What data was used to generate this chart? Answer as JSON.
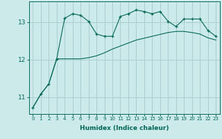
{
  "xlabel": "Humidex (Indice chaleur)",
  "bg_color": "#cceaea",
  "grid_color": "#aacfcf",
  "line_color": "#006655",
  "xlim": [
    -0.5,
    23.5
  ],
  "ylim": [
    10.55,
    13.55
  ],
  "yticks": [
    11,
    12,
    13
  ],
  "xticks": [
    0,
    1,
    2,
    3,
    4,
    5,
    6,
    7,
    8,
    9,
    10,
    11,
    12,
    13,
    14,
    15,
    16,
    17,
    18,
    19,
    20,
    21,
    22,
    23
  ],
  "line1_x": [
    0,
    1,
    2,
    3,
    4,
    5,
    6,
    7,
    8,
    9,
    10,
    11,
    12,
    13,
    14,
    15,
    16,
    17,
    18,
    19,
    20,
    21,
    22,
    23
  ],
  "line1_y": [
    10.72,
    11.08,
    11.35,
    12.02,
    13.1,
    13.22,
    13.18,
    13.02,
    12.68,
    12.62,
    12.62,
    13.15,
    13.22,
    13.32,
    13.28,
    13.22,
    13.28,
    13.02,
    12.88,
    13.08,
    13.08,
    13.08,
    12.78,
    12.62
  ],
  "line2_x": [
    0,
    1,
    2,
    3,
    4,
    5,
    6,
    7,
    8,
    9,
    10,
    11,
    12,
    13,
    14,
    15,
    16,
    17,
    18,
    19,
    20,
    21,
    22,
    23
  ],
  "line2_y": [
    10.72,
    11.08,
    11.35,
    12.02,
    12.02,
    12.02,
    12.02,
    12.05,
    12.1,
    12.18,
    12.28,
    12.36,
    12.44,
    12.52,
    12.57,
    12.62,
    12.67,
    12.72,
    12.75,
    12.75,
    12.72,
    12.68,
    12.58,
    12.52
  ]
}
